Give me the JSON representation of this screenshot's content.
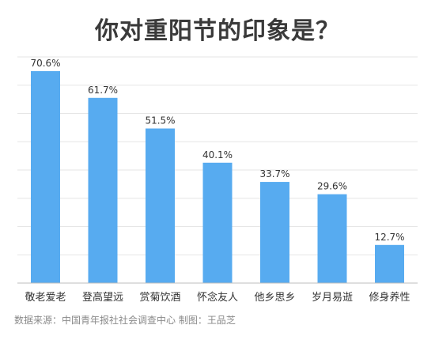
{
  "title": "你对重阳节的印象是？",
  "source": "数据来源：中国青年报社社会调查中心   制图：王品芝",
  "colors": {
    "bar": "#57ABF0",
    "grid": "#E6E6E6",
    "axis": "#BDBDBD",
    "label": "#333333"
  },
  "chart_data": {
    "type": "bar",
    "title": "你对重阳节的印象是？",
    "categories": [
      "敬老爱老",
      "登高望远",
      "赏菊饮酒",
      "怀念友人",
      "他乡思乡",
      "岁月易逝",
      "修身养性"
    ],
    "values": [
      70.6,
      61.7,
      51.5,
      40.1,
      33.7,
      29.6,
      12.7
    ],
    "data_labels": [
      "70.6%",
      "61.7%",
      "51.5%",
      "40.1%",
      "33.7%",
      "29.6%",
      "12.7%"
    ],
    "unit": "%",
    "xlabel": "",
    "ylabel": "",
    "ylim": [
      0,
      72
    ],
    "grid": true,
    "legend": "none"
  }
}
